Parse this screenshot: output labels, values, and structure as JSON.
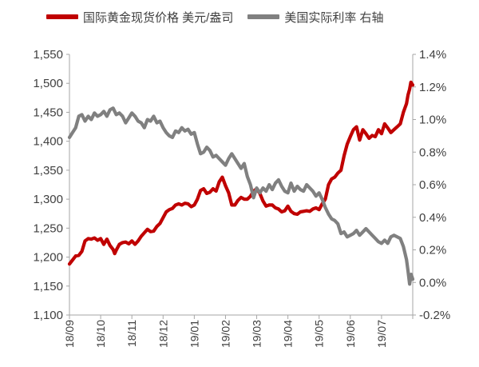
{
  "chart_data": {
    "type": "line",
    "title": "",
    "xlabel": "",
    "categories": [
      "18/09",
      "18/10",
      "18/11",
      "18/12",
      "19/01",
      "19/02",
      "19/03",
      "19/04",
      "19/05",
      "19/06",
      "19/07"
    ],
    "y_left": {
      "ticks": [
        "1,100",
        "1,150",
        "1,200",
        "1,250",
        "1,300",
        "1,350",
        "1,400",
        "1,450",
        "1,500",
        "1,550"
      ],
      "ylim": [
        1100,
        1550
      ]
    },
    "y_right": {
      "ticks": [
        "-0.2%",
        "0.0%",
        "0.2%",
        "0.4%",
        "0.6%",
        "0.8%",
        "1.0%",
        "1.2%",
        "1.4%"
      ],
      "ylim": [
        -0.2,
        1.4
      ]
    },
    "grid": false,
    "legend_position": "top",
    "series": [
      {
        "name": "国际黄金现货价格 美元/盎司",
        "axis": "left",
        "color": "#c00000",
        "points": [
          [
            0.0,
            1188
          ],
          [
            0.1,
            1195
          ],
          [
            0.2,
            1202
          ],
          [
            0.3,
            1203
          ],
          [
            0.4,
            1210
          ],
          [
            0.5,
            1228
          ],
          [
            0.6,
            1232
          ],
          [
            0.7,
            1231
          ],
          [
            0.8,
            1233
          ],
          [
            0.9,
            1229
          ],
          [
            1.0,
            1232
          ],
          [
            1.1,
            1222
          ],
          [
            1.2,
            1231
          ],
          [
            1.3,
            1220
          ],
          [
            1.4,
            1213
          ],
          [
            1.45,
            1206
          ],
          [
            1.5,
            1212
          ],
          [
            1.6,
            1222
          ],
          [
            1.7,
            1225
          ],
          [
            1.8,
            1226
          ],
          [
            1.9,
            1223
          ],
          [
            2.0,
            1228
          ],
          [
            2.1,
            1222
          ],
          [
            2.2,
            1228
          ],
          [
            2.3,
            1236
          ],
          [
            2.4,
            1242
          ],
          [
            2.5,
            1248
          ],
          [
            2.6,
            1244
          ],
          [
            2.7,
            1245
          ],
          [
            2.8,
            1253
          ],
          [
            2.9,
            1258
          ],
          [
            3.0,
            1268
          ],
          [
            3.1,
            1278
          ],
          [
            3.2,
            1282
          ],
          [
            3.3,
            1284
          ],
          [
            3.4,
            1290
          ],
          [
            3.5,
            1292
          ],
          [
            3.6,
            1290
          ],
          [
            3.7,
            1293
          ],
          [
            3.8,
            1292
          ],
          [
            3.9,
            1287
          ],
          [
            4.0,
            1290
          ],
          [
            4.1,
            1300
          ],
          [
            4.2,
            1315
          ],
          [
            4.3,
            1318
          ],
          [
            4.4,
            1310
          ],
          [
            4.5,
            1312
          ],
          [
            4.6,
            1318
          ],
          [
            4.7,
            1314
          ],
          [
            4.8,
            1330
          ],
          [
            4.9,
            1338
          ],
          [
            5.0,
            1323
          ],
          [
            5.1,
            1311
          ],
          [
            5.2,
            1290
          ],
          [
            5.3,
            1290
          ],
          [
            5.4,
            1298
          ],
          [
            5.5,
            1303
          ],
          [
            5.6,
            1300
          ],
          [
            5.7,
            1300
          ],
          [
            5.8,
            1305
          ],
          [
            5.9,
            1314
          ],
          [
            6.0,
            1318
          ],
          [
            6.1,
            1310
          ],
          [
            6.2,
            1297
          ],
          [
            6.3,
            1288
          ],
          [
            6.4,
            1290
          ],
          [
            6.5,
            1290
          ],
          [
            6.6,
            1285
          ],
          [
            6.7,
            1283
          ],
          [
            6.8,
            1278
          ],
          [
            6.9,
            1280
          ],
          [
            7.0,
            1288
          ],
          [
            7.1,
            1279
          ],
          [
            7.2,
            1275
          ],
          [
            7.3,
            1274
          ],
          [
            7.4,
            1278
          ],
          [
            7.5,
            1279
          ],
          [
            7.6,
            1280
          ],
          [
            7.7,
            1279
          ],
          [
            7.8,
            1283
          ],
          [
            7.9,
            1285
          ],
          [
            8.0,
            1282
          ],
          [
            8.1,
            1292
          ],
          [
            8.2,
            1300
          ],
          [
            8.3,
            1325
          ],
          [
            8.4,
            1335
          ],
          [
            8.5,
            1338
          ],
          [
            8.6,
            1345
          ],
          [
            8.7,
            1350
          ],
          [
            8.8,
            1375
          ],
          [
            8.9,
            1395
          ],
          [
            9.0,
            1408
          ],
          [
            9.1,
            1420
          ],
          [
            9.2,
            1425
          ],
          [
            9.3,
            1402
          ],
          [
            9.4,
            1420
          ],
          [
            9.5,
            1413
          ],
          [
            9.6,
            1405
          ],
          [
            9.7,
            1410
          ],
          [
            9.8,
            1408
          ],
          [
            9.9,
            1420
          ],
          [
            10.0,
            1413
          ],
          [
            10.1,
            1430
          ],
          [
            10.2,
            1423
          ],
          [
            10.3,
            1415
          ],
          [
            10.4,
            1420
          ],
          [
            10.5,
            1425
          ],
          [
            10.6,
            1430
          ],
          [
            10.7,
            1450
          ],
          [
            10.8,
            1465
          ],
          [
            10.85,
            1480
          ],
          [
            10.9,
            1490
          ],
          [
            10.94,
            1502
          ],
          [
            11.0,
            1497
          ]
        ]
      },
      {
        "name": "美国实际利率 右轴",
        "axis": "right",
        "color": "#808080",
        "points": [
          [
            0.0,
            0.89
          ],
          [
            0.1,
            0.92
          ],
          [
            0.2,
            0.95
          ],
          [
            0.3,
            1.02
          ],
          [
            0.4,
            1.03
          ],
          [
            0.5,
            0.99
          ],
          [
            0.6,
            1.02
          ],
          [
            0.7,
            1.0
          ],
          [
            0.8,
            1.04
          ],
          [
            0.9,
            1.02
          ],
          [
            1.0,
            1.03
          ],
          [
            1.1,
            1.05
          ],
          [
            1.2,
            1.02
          ],
          [
            1.3,
            1.06
          ],
          [
            1.4,
            1.07
          ],
          [
            1.5,
            1.03
          ],
          [
            1.6,
            1.04
          ],
          [
            1.7,
            1.02
          ],
          [
            1.8,
            0.98
          ],
          [
            1.9,
            1.01
          ],
          [
            2.0,
            1.04
          ],
          [
            2.1,
            1.02
          ],
          [
            2.2,
            0.99
          ],
          [
            2.3,
            0.98
          ],
          [
            2.4,
            0.95
          ],
          [
            2.5,
            1.0
          ],
          [
            2.6,
            0.99
          ],
          [
            2.7,
            1.02
          ],
          [
            2.8,
            0.98
          ],
          [
            2.9,
            0.99
          ],
          [
            3.0,
            0.95
          ],
          [
            3.1,
            0.92
          ],
          [
            3.2,
            0.9
          ],
          [
            3.3,
            0.89
          ],
          [
            3.4,
            0.93
          ],
          [
            3.5,
            0.92
          ],
          [
            3.6,
            0.95
          ],
          [
            3.7,
            0.93
          ],
          [
            3.8,
            0.94
          ],
          [
            3.9,
            0.91
          ],
          [
            4.0,
            0.92
          ],
          [
            4.1,
            0.85
          ],
          [
            4.2,
            0.79
          ],
          [
            4.3,
            0.8
          ],
          [
            4.4,
            0.83
          ],
          [
            4.5,
            0.81
          ],
          [
            4.6,
            0.77
          ],
          [
            4.7,
            0.78
          ],
          [
            4.8,
            0.76
          ],
          [
            4.9,
            0.74
          ],
          [
            5.0,
            0.72
          ],
          [
            5.1,
            0.76
          ],
          [
            5.2,
            0.79
          ],
          [
            5.3,
            0.76
          ],
          [
            5.4,
            0.73
          ],
          [
            5.5,
            0.7
          ],
          [
            5.6,
            0.73
          ],
          [
            5.7,
            0.65
          ],
          [
            5.8,
            0.6
          ],
          [
            5.9,
            0.52
          ],
          [
            6.0,
            0.58
          ],
          [
            6.1,
            0.55
          ],
          [
            6.2,
            0.58
          ],
          [
            6.3,
            0.56
          ],
          [
            6.4,
            0.6
          ],
          [
            6.5,
            0.57
          ],
          [
            6.6,
            0.61
          ],
          [
            6.7,
            0.63
          ],
          [
            6.8,
            0.59
          ],
          [
            6.9,
            0.56
          ],
          [
            7.0,
            0.55
          ],
          [
            7.1,
            0.61
          ],
          [
            7.2,
            0.56
          ],
          [
            7.3,
            0.59
          ],
          [
            7.4,
            0.57
          ],
          [
            7.5,
            0.56
          ],
          [
            7.6,
            0.6
          ],
          [
            7.7,
            0.58
          ],
          [
            7.8,
            0.56
          ],
          [
            7.9,
            0.53
          ],
          [
            8.0,
            0.55
          ],
          [
            8.1,
            0.51
          ],
          [
            8.2,
            0.46
          ],
          [
            8.3,
            0.42
          ],
          [
            8.4,
            0.39
          ],
          [
            8.5,
            0.38
          ],
          [
            8.6,
            0.36
          ],
          [
            8.7,
            0.3
          ],
          [
            8.8,
            0.31
          ],
          [
            8.9,
            0.28
          ],
          [
            9.0,
            0.29
          ],
          [
            9.1,
            0.3
          ],
          [
            9.2,
            0.32
          ],
          [
            9.3,
            0.29
          ],
          [
            9.4,
            0.31
          ],
          [
            9.5,
            0.33
          ],
          [
            9.6,
            0.31
          ],
          [
            9.7,
            0.29
          ],
          [
            9.8,
            0.27
          ],
          [
            9.9,
            0.25
          ],
          [
            10.0,
            0.24
          ],
          [
            10.1,
            0.26
          ],
          [
            10.2,
            0.24
          ],
          [
            10.3,
            0.28
          ],
          [
            10.4,
            0.29
          ],
          [
            10.5,
            0.28
          ],
          [
            10.6,
            0.27
          ],
          [
            10.7,
            0.22
          ],
          [
            10.8,
            0.14
          ],
          [
            10.85,
            0.07
          ],
          [
            10.9,
            -0.01
          ],
          [
            10.95,
            0.05
          ],
          [
            11.0,
            0.02
          ]
        ]
      }
    ]
  }
}
